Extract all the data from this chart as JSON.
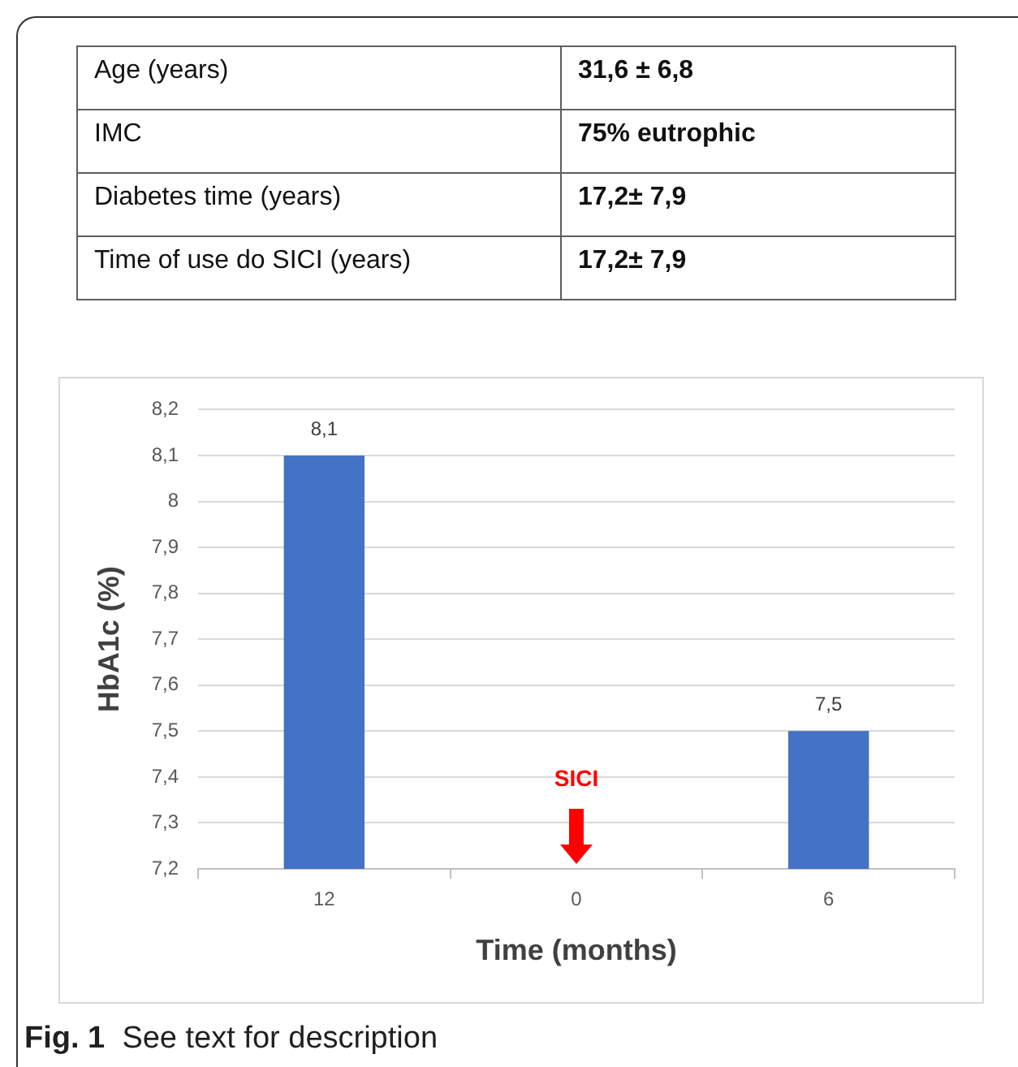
{
  "chart_data": [
    {
      "type": "other",
      "annotations": [
        "Age (years)",
        "31,6 ± 6,8",
        "IMC",
        "75% eutrophic",
        "Diabetes time (years)",
        "17,2± 7,9",
        "Time of use do SICI (years)",
        "17,2± 7,9"
      ]
    },
    {
      "type": "bar",
      "categories": [
        "12",
        "0",
        "6"
      ],
      "values": [
        8.1,
        null,
        7.5
      ],
      "value_labels": [
        "8,1",
        null,
        "7,5"
      ],
      "color": "#4472c4",
      "xlabel": "Time (months)",
      "ylabel": "HbA1c (%)",
      "ylim": [
        7.2,
        8.2
      ],
      "yticks": [
        {
          "value": 7.2,
          "label": "7,2"
        },
        {
          "value": 7.3,
          "label": "7,3"
        },
        {
          "value": 7.4,
          "label": "7,4"
        },
        {
          "value": 7.5,
          "label": "7,5"
        },
        {
          "value": 7.6,
          "label": "7,6"
        },
        {
          "value": 7.7,
          "label": "7,7"
        },
        {
          "value": 7.8,
          "label": "7,8"
        },
        {
          "value": 7.9,
          "label": "7,9"
        },
        8,
        {
          "value": 8.1,
          "label": "8,1"
        },
        {
          "value": 8.2,
          "label": "8,2"
        }
      ],
      "grid": "y",
      "annotations": [
        "SICI",
        "Fig. 1 See text for description"
      ]
    }
  ]
}
